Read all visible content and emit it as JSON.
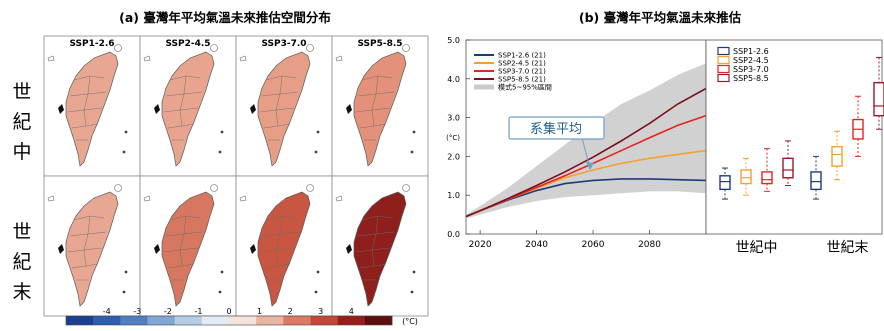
{
  "panel_a": {
    "title": "(a) 臺灣年平均氣溫未來推估空間分布",
    "scenarios": [
      "SSP1-2.6",
      "SSP2-4.5",
      "SSP3-7.0",
      "SSP5-8.5"
    ],
    "row_labels": [
      [
        "世",
        "紀",
        "中"
      ],
      [
        "世",
        "紀",
        "末"
      ]
    ],
    "map_fill_colors": [
      [
        "#e8a793",
        "#e9a48f",
        "#e79e87",
        "#e3917a"
      ],
      [
        "#e8a793",
        "#d77760",
        "#c95641",
        "#8f1f1d"
      ]
    ],
    "colorbar": {
      "ticks": [
        "-4",
        "-3",
        "-2",
        "-1",
        "0",
        "1",
        "2",
        "3",
        "4"
      ],
      "unit": "(°C)",
      "colors": [
        "#1d3f8f",
        "#2e5fab",
        "#4f7fc0",
        "#7fa6d6",
        "#b5cce6",
        "#e3ecf6",
        "#f6e3dd",
        "#ecb4a3",
        "#dc7b63",
        "#c44634",
        "#961d1a",
        "#5e0e0e"
      ]
    }
  },
  "panel_b": {
    "title": "(b) 臺灣年平均氣溫未來推估",
    "annotation": "系集平均",
    "box_group_labels": [
      "世紀中",
      "世紀末"
    ]
  },
  "chart_data": [
    {
      "type": "line",
      "ylabel": "(°C)",
      "ylim": [
        0.0,
        5.0
      ],
      "yticks": [
        "0.0",
        "1.0",
        "2.0",
        "3.0",
        "4.0",
        "5.0"
      ],
      "xlim": [
        2015,
        2100
      ],
      "xticks": [
        "2020",
        "2040",
        "2060",
        "2080"
      ],
      "legend_position": "top-left",
      "legend": [
        "SSP1-2.6 (21)",
        "SSP2-4.5 (21)",
        "SSP3-7.0 (21)",
        "SSP5-8.5 (21)",
        "模式5~95%區間"
      ],
      "x": [
        2015,
        2020,
        2030,
        2040,
        2050,
        2060,
        2070,
        2080,
        2090,
        2100
      ],
      "series": [
        {
          "name": "SSP1-2.6 (21)",
          "color": "#1f3b73",
          "values": [
            0.45,
            0.6,
            0.88,
            1.12,
            1.3,
            1.38,
            1.42,
            1.42,
            1.4,
            1.38
          ]
        },
        {
          "name": "SSP2-4.5 (21)",
          "color": "#f5a030",
          "values": [
            0.45,
            0.6,
            0.9,
            1.18,
            1.45,
            1.65,
            1.82,
            1.95,
            2.05,
            2.15
          ]
        },
        {
          "name": "SSP3-7.0 (21)",
          "color": "#e8221c",
          "values": [
            0.45,
            0.6,
            0.9,
            1.2,
            1.5,
            1.82,
            2.15,
            2.48,
            2.8,
            3.05
          ]
        },
        {
          "name": "SSP5-8.5 (21)",
          "color": "#7a1020",
          "values": [
            0.45,
            0.6,
            0.92,
            1.25,
            1.6,
            1.98,
            2.4,
            2.85,
            3.35,
            3.75
          ]
        }
      ],
      "band": {
        "name": "模式5~95%區間",
        "color": "#c9c9c9",
        "lower": [
          0.4,
          0.5,
          0.7,
          0.85,
          0.95,
          1.0,
          1.05,
          1.1,
          1.1,
          1.05
        ],
        "upper": [
          0.5,
          0.72,
          1.2,
          1.75,
          2.3,
          2.85,
          3.35,
          3.7,
          4.1,
          4.4
        ]
      }
    },
    {
      "type": "box",
      "ylim": [
        0.0,
        5.0
      ],
      "groups": [
        "世紀中",
        "世紀末"
      ],
      "legend_position": "top-left",
      "legend": [
        "SSP1-2.6",
        "SSP2-4.5",
        "SSP3-7.0",
        "SSP5-8.5"
      ],
      "series": [
        {
          "name": "SSP1-2.6",
          "color": "#1f3b73",
          "boxes": [
            {
              "min": 0.9,
              "q1": 1.15,
              "median": 1.35,
              "q3": 1.5,
              "max": 1.7
            },
            {
              "min": 0.9,
              "q1": 1.15,
              "median": 1.35,
              "q3": 1.6,
              "max": 2.0
            }
          ]
        },
        {
          "name": "SSP2-4.5",
          "color": "#f5a030",
          "boxes": [
            {
              "min": 1.0,
              "q1": 1.3,
              "median": 1.45,
              "q3": 1.65,
              "max": 1.95
            },
            {
              "min": 1.4,
              "q1": 1.75,
              "median": 2.05,
              "q3": 2.25,
              "max": 2.65
            }
          ]
        },
        {
          "name": "SSP3-7.0",
          "color": "#e8221c",
          "boxes": [
            {
              "min": 1.1,
              "q1": 1.3,
              "median": 1.4,
              "q3": 1.6,
              "max": 2.2
            },
            {
              "min": 2.0,
              "q1": 2.45,
              "median": 2.7,
              "q3": 2.95,
              "max": 3.55
            }
          ]
        },
        {
          "name": "SSP5-8.5",
          "color": "#9e1a2a",
          "boxes": [
            {
              "min": 1.25,
              "q1": 1.45,
              "median": 1.65,
              "q3": 1.95,
              "max": 2.4
            },
            {
              "min": 2.7,
              "q1": 3.05,
              "median": 3.3,
              "q3": 3.9,
              "max": 4.55
            }
          ]
        }
      ]
    }
  ]
}
